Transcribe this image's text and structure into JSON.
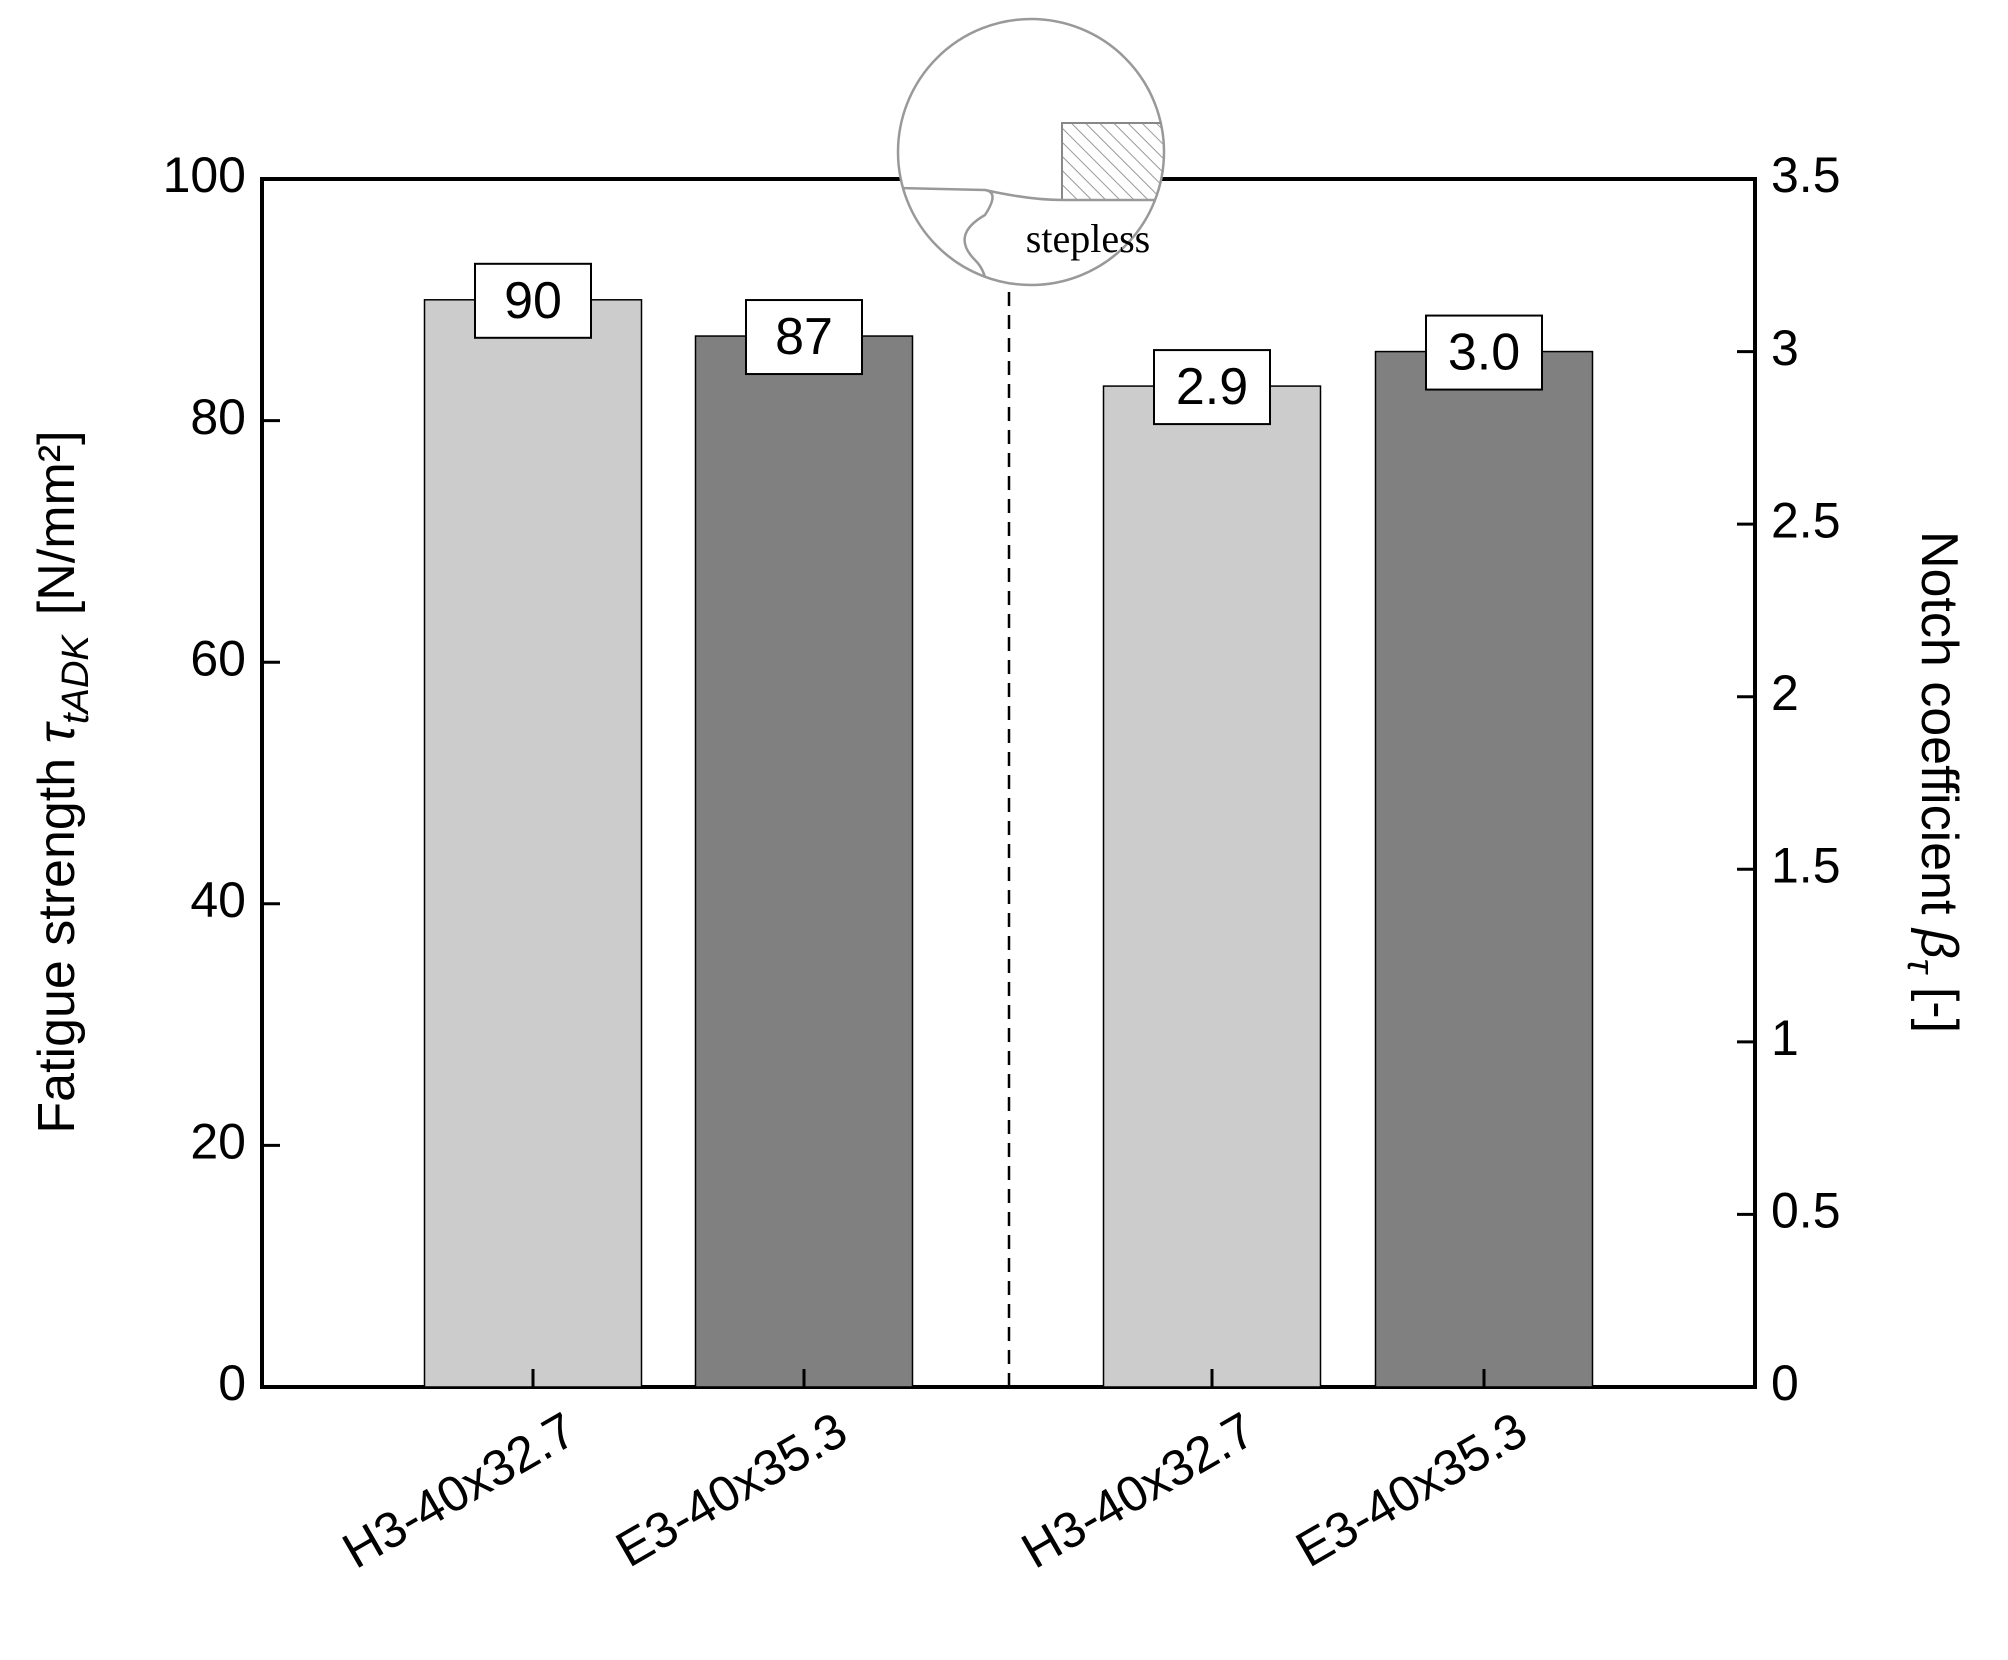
{
  "chart_data": {
    "type": "bar",
    "categories": [
      "H3-40x32.7",
      "E3-40x35.3",
      "H3-40x32.7",
      "E3-40x35.3"
    ],
    "colors": [
      "#cccccc",
      "#808080",
      "#cccccc",
      "#808080"
    ],
    "series": [
      {
        "values": [
          90,
          87,
          null,
          null
        ]
      },
      {
        "axis": "y2",
        "values": [
          null,
          null,
          2.9,
          3.0
        ],
        "value_labels": [
          null,
          null,
          "2.9",
          "3.0"
        ]
      }
    ],
    "ylabel": "Fatigue strength",
    "ylabel_symbol": "τ",
    "ylabel_sub": "tADK",
    "ylabel_unit": "[N/mm²]",
    "y2label": "Notch coefficient",
    "y2label_symbol": "β",
    "y2label_sub": "τ",
    "y2label_unit": "[-]",
    "annotation": "stepless",
    "ylim": [
      0,
      100
    ],
    "yticks": [
      0,
      20,
      40,
      60,
      80,
      100
    ],
    "y2lim": [
      0,
      3.5
    ],
    "y2ticks": [
      0,
      0.5,
      1,
      1.5,
      2,
      2.5,
      3,
      3.5
    ]
  }
}
